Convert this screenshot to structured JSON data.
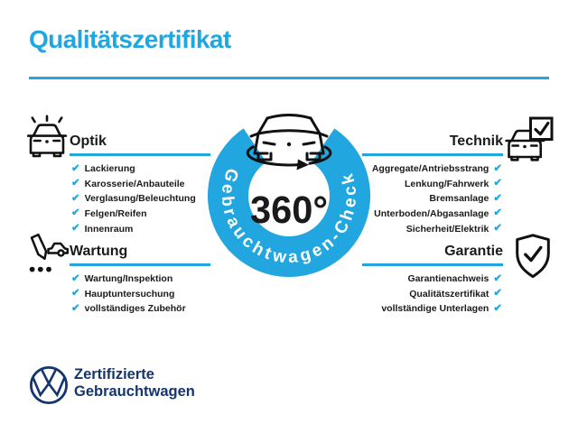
{
  "title": "Qualitätszertifikat",
  "colors": {
    "accent": "#21A6DF",
    "navy": "#15356E",
    "ink": "#1A1A1A",
    "background": "#FFFFFF"
  },
  "check_glyph": "✔",
  "center": {
    "value": "360°",
    "ring_label": "Gebrauchtwagen-Check",
    "icon": "car-rotation-icon"
  },
  "sections": [
    {
      "id": "optik",
      "label": "Optik",
      "side": "left",
      "icon": "car-front-shine-icon",
      "items": [
        "Lackierung",
        "Karosserie/Anbauteile",
        "Verglasung/Beleuchtung",
        "Felgen/Reifen",
        "Innenraum"
      ]
    },
    {
      "id": "wartung",
      "label": "Wartung",
      "side": "left",
      "icon": "pencil-car-checklist-icon",
      "items": [
        "Wartung/Inspektion",
        "Hauptuntersuchung",
        "vollständiges Zubehör"
      ]
    },
    {
      "id": "technik",
      "label": "Technik",
      "side": "right",
      "icon": "car-checkbox-icon",
      "items": [
        "Aggregate/Antriebsstrang",
        "Lenkung/Fahrwerk",
        "Bremsanlage",
        "Unterboden/Abgasanlage",
        "Sicherheit/Elektrik"
      ]
    },
    {
      "id": "garantie",
      "label": "Garantie",
      "side": "right",
      "icon": "shield-check-icon",
      "items": [
        "Garantienachweis",
        "Qualitätszertifikat",
        "vollständige Unterlagen"
      ]
    }
  ],
  "footer": {
    "logo": "vw-logo",
    "line1": "Zertifizierte",
    "line2": "Gebrauchtwagen"
  }
}
